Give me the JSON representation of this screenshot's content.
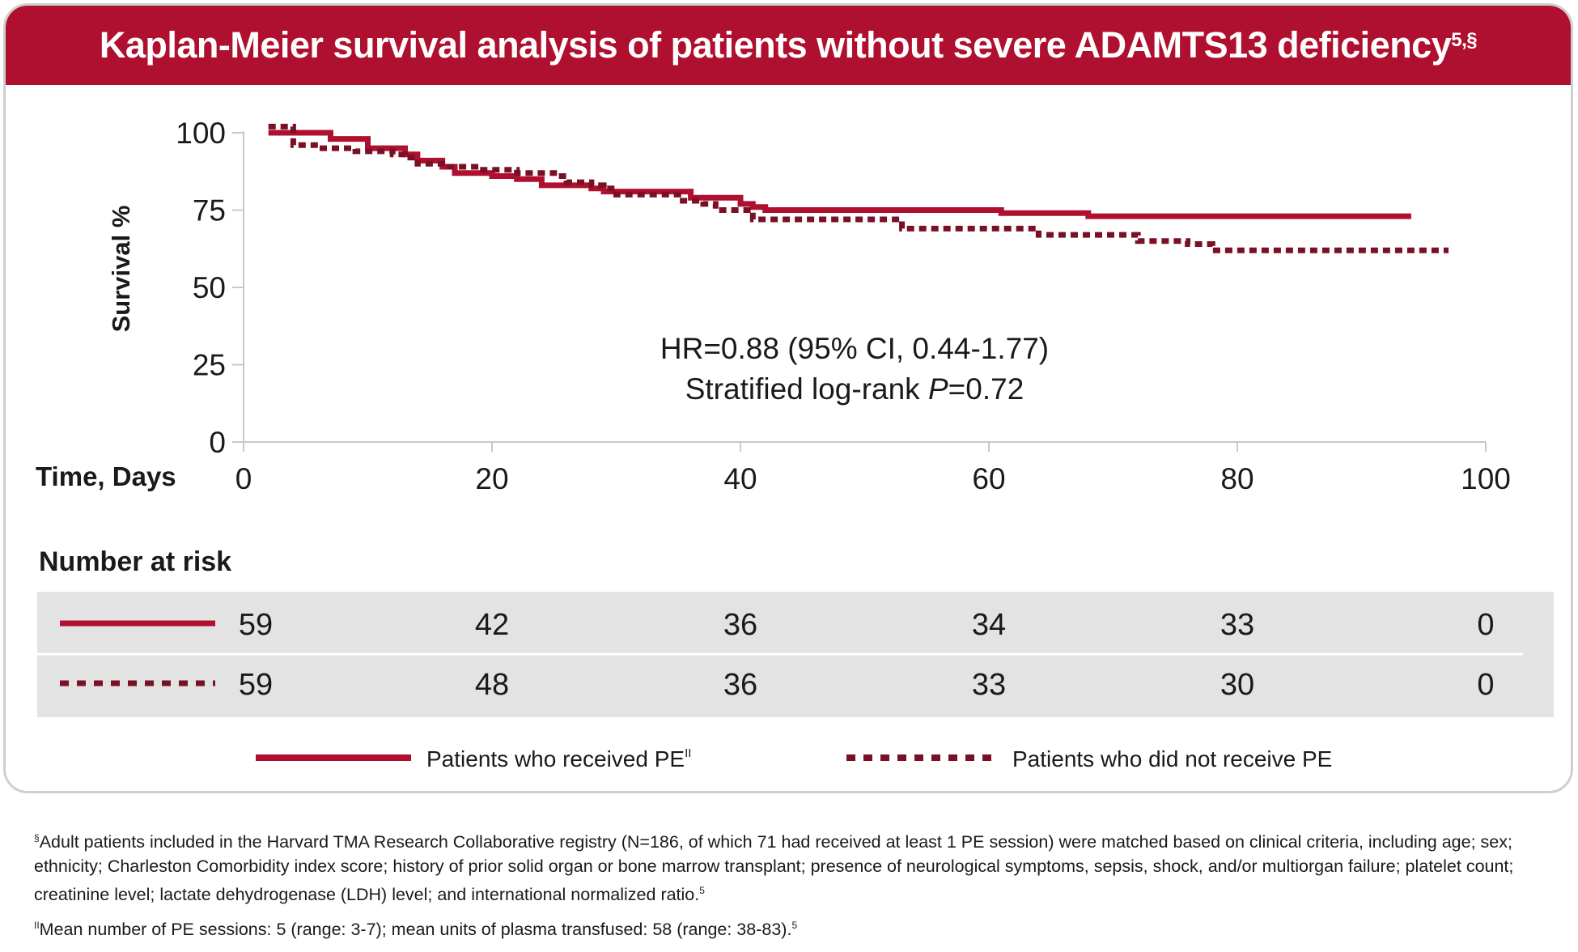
{
  "title": "Kaplan-Meier survival analysis of patients without severe ADAMTS13 deficiency",
  "title_superscript": "5,§",
  "colors": {
    "header_bg": "#b0102f",
    "series_received": "#b0102f",
    "series_not_received": "#7a1026",
    "risk_table_bg": "#e3e3e3",
    "card_border": "#cfcfcf"
  },
  "chart_data": {
    "type": "line",
    "ylabel": "Survival %",
    "xlabel": "Time, Days",
    "xlim": [
      0,
      100
    ],
    "ylim": [
      0,
      100
    ],
    "x_ticks": [
      0,
      20,
      40,
      60,
      80,
      100
    ],
    "y_ticks": [
      0,
      25,
      50,
      75,
      100
    ],
    "grid": false,
    "legend_placement": "bottom",
    "series": [
      {
        "name": "Patients who received PE",
        "name_superscript": "II",
        "style": "solid",
        "points": [
          [
            2,
            100
          ],
          [
            7,
            100
          ],
          [
            7,
            98
          ],
          [
            10,
            98
          ],
          [
            10,
            95
          ],
          [
            13,
            95
          ],
          [
            13,
            93
          ],
          [
            14,
            93
          ],
          [
            14,
            91
          ],
          [
            16,
            91
          ],
          [
            16,
            89
          ],
          [
            17,
            89
          ],
          [
            17,
            87
          ],
          [
            20,
            87
          ],
          [
            20,
            86
          ],
          [
            22,
            86
          ],
          [
            22,
            85
          ],
          [
            24,
            85
          ],
          [
            24,
            83
          ],
          [
            28,
            83
          ],
          [
            28,
            82
          ],
          [
            29,
            82
          ],
          [
            29,
            81
          ],
          [
            36,
            81
          ],
          [
            36,
            79
          ],
          [
            40,
            79
          ],
          [
            40,
            77
          ],
          [
            41,
            77
          ],
          [
            41,
            76
          ],
          [
            42,
            76
          ],
          [
            42,
            75
          ],
          [
            61,
            75
          ],
          [
            61,
            74
          ],
          [
            68,
            74
          ],
          [
            68,
            73
          ],
          [
            94,
            73
          ]
        ]
      },
      {
        "name": "Patients who did not receive PE",
        "style": "dotted",
        "points": [
          [
            2,
            102
          ],
          [
            4,
            102
          ],
          [
            4,
            96
          ],
          [
            6,
            96
          ],
          [
            6,
            95
          ],
          [
            9,
            95
          ],
          [
            9,
            94
          ],
          [
            12,
            94
          ],
          [
            12,
            93
          ],
          [
            13,
            93
          ],
          [
            13,
            92
          ],
          [
            14,
            92
          ],
          [
            14,
            90
          ],
          [
            16,
            90
          ],
          [
            16,
            89
          ],
          [
            19,
            89
          ],
          [
            19,
            88
          ],
          [
            22,
            88
          ],
          [
            22,
            87
          ],
          [
            25,
            87
          ],
          [
            25,
            86
          ],
          [
            26,
            86
          ],
          [
            26,
            84
          ],
          [
            28,
            84
          ],
          [
            28,
            83
          ],
          [
            29,
            83
          ],
          [
            29,
            82
          ],
          [
            30,
            82
          ],
          [
            30,
            80
          ],
          [
            35,
            80
          ],
          [
            35,
            78
          ],
          [
            37,
            78
          ],
          [
            37,
            77
          ],
          [
            38,
            77
          ],
          [
            38,
            75
          ],
          [
            41,
            75
          ],
          [
            41,
            72
          ],
          [
            53,
            72
          ],
          [
            53,
            69
          ],
          [
            64,
            69
          ],
          [
            64,
            67
          ],
          [
            72,
            67
          ],
          [
            72,
            65
          ],
          [
            76,
            65
          ],
          [
            76,
            64
          ],
          [
            78,
            64
          ],
          [
            78,
            62
          ],
          [
            97,
            62
          ]
        ]
      }
    ],
    "annotation_line1": "HR=0.88 (95% CI, 0.44-1.77)",
    "annotation_line2_prefix": "Stratified log-rank ",
    "annotation_line2_italic": "P",
    "annotation_line2_suffix": "=0.72"
  },
  "risk_table": {
    "heading": "Number at risk",
    "rows": [
      {
        "series": "Patients who received PE",
        "values": [
          "59",
          "42",
          "36",
          "34",
          "33",
          "0"
        ]
      },
      {
        "series": "Patients who did not receive PE",
        "values": [
          "59",
          "48",
          "36",
          "33",
          "30",
          "0"
        ]
      }
    ]
  },
  "footnotes": {
    "note1_mark": "§",
    "note1_text": "Adult patients included in the Harvard TMA Research Collaborative registry (N=186, of which 71 had received at least 1 PE session) were matched based on clinical criteria, including age; sex; ethnicity; Charleston Comorbidity index score; history of prior solid organ or bone marrow transplant; presence of neurological symptoms, sepsis, shock, and/or multiorgan failure; platelet count; creatinine level; lactate dehydrogenase (LDH) level; and international normalized ratio.",
    "note1_ref": "5",
    "note2_mark": "II",
    "note2_text": "Mean number of PE sessions: 5 (range: 3-7); mean units of plasma transfused: 58 (range: 38-83).",
    "note2_ref": "5"
  }
}
